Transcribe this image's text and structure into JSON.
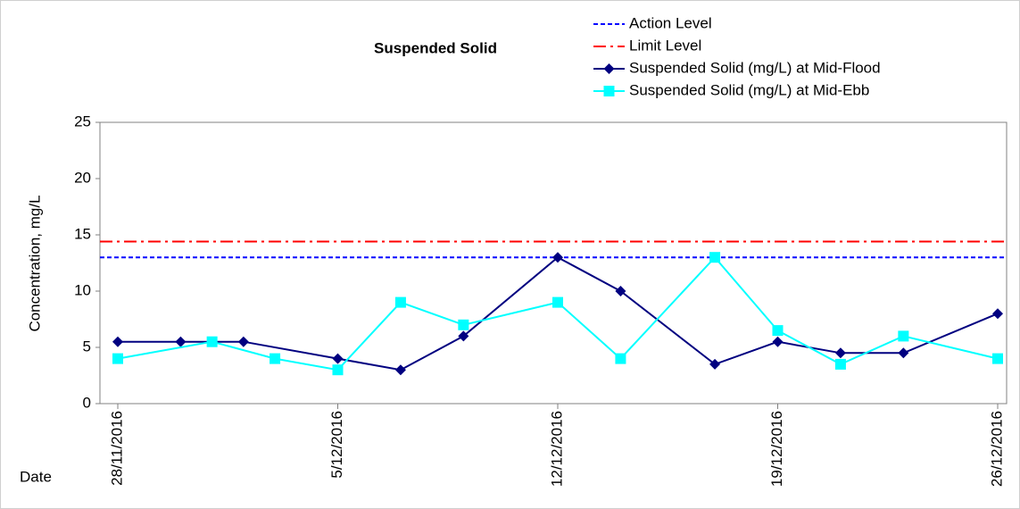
{
  "chart_data": {
    "type": "line",
    "title": "Suspended Solid",
    "y_label": "Concentration, mg/L",
    "x_label": "Date",
    "xlim": [
      "28/11/2016",
      "26/12/2016"
    ],
    "xticks": [
      "28/11/2016",
      "5/12/2016",
      "12/12/2016",
      "19/12/2016",
      "26/12/2016"
    ],
    "ylim": [
      0,
      25
    ],
    "yticks": [
      0,
      5,
      10,
      15,
      20,
      25
    ],
    "grid": false,
    "legend": "top-right",
    "reference_lines": [
      {
        "name": "Action Level",
        "value": 13,
        "color": "#0000ff",
        "style": "dashed"
      },
      {
        "name": "Limit Level",
        "value": 14.4,
        "color": "#ff0000",
        "style": "dashdot"
      }
    ],
    "series": [
      {
        "name": "Suspended Solid (mg/L) at Mid-Flood",
        "color": "#000080",
        "marker": "diamond",
        "x": [
          "28/11/2016",
          "30/11/2016",
          "2/12/2016",
          "5/12/2016",
          "7/12/2016",
          "9/12/2016",
          "12/12/2016",
          "14/12/2016",
          "17/12/2016",
          "19/12/2016",
          "21/12/2016",
          "23/12/2016",
          "26/12/2016"
        ],
        "values": [
          5.5,
          5.5,
          5.5,
          4,
          3,
          6,
          13,
          10,
          3.5,
          5.5,
          4.5,
          4.5,
          8
        ]
      },
      {
        "name": "Suspended Solid (mg/L) at Mid-Ebb",
        "color": "#00ffff",
        "marker": "square",
        "x": [
          "28/11/2016",
          "1/12/2016",
          "3/12/2016",
          "5/12/2016",
          "7/12/2016",
          "9/12/2016",
          "12/12/2016",
          "14/12/2016",
          "17/12/2016",
          "19/12/2016",
          "21/12/2016",
          "23/12/2016",
          "26/12/2016"
        ],
        "values": [
          4,
          5.5,
          4,
          3,
          9,
          7,
          9,
          4,
          13,
          6.5,
          3.5,
          6,
          4
        ]
      }
    ]
  }
}
